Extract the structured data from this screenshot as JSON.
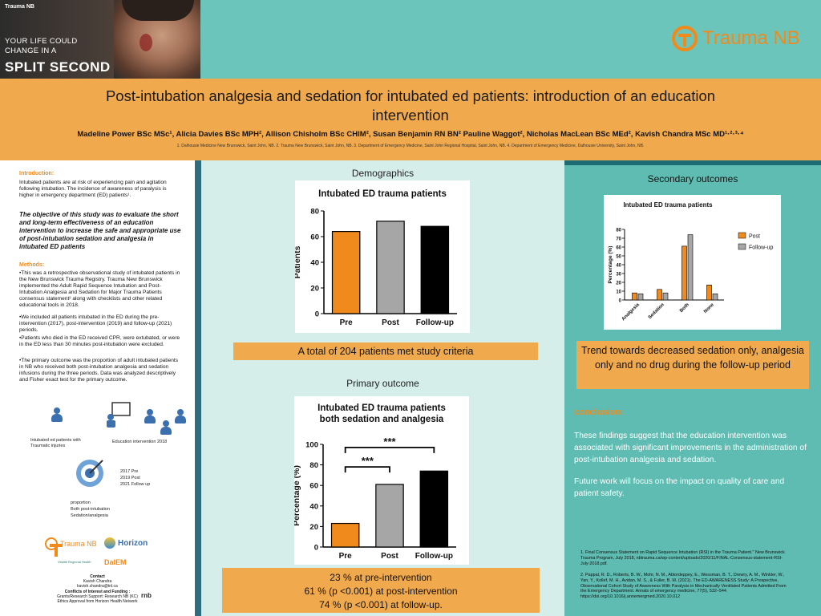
{
  "hero": {
    "brand": "Trauma NB",
    "tagline1": "YOUR LIFE COULD",
    "tagline2": "CHANGE IN A",
    "tagline3": "SPLIT SECOND"
  },
  "logo_main": "Trauma NB",
  "title": "Post-intubation analgesia and sedation for intubated ed patients: introduction of an education intervention",
  "authors": "Madeline Power BSc MSc¹, Alicia Davies BSc MPH², Allison Chisholm BSc CHIM², Susan Benjamin RN BN² Pauline Waggot², Nicholas MacLean BSc MEd², Kavish Chandra MSc MD¹·²·³·⁴",
  "affiliations": "1. Dalhousie Medicine New Brunswick, Saint John, NB. 2. Trauma New Brunswick, Saint John, NB. 3. Department of Emergency Medicine, Saint John Regional Hospital, Saint John, NB. 4. Department of Emergency Medicine, Dalhousie University, Saint John, NB.",
  "left": {
    "intro_head": "Introduction:",
    "intro_text": "Intubated patients are at risk of experiencing pain and agitation following intubation. The incidence of awareness of paralysis is higher in emergency department (ED) patients¹.",
    "objective": "The objective of this study was to evaluate the short and long-term effectiveness of an education intervention to increase the safe and appropriate use of post-intubation sedation and analgesia in intubated ED patients",
    "methods_head": "Methods:",
    "m1": "•This was a retrospective observational study of intubated patients in the New Brunswick Trauma Registry. Trauma New Brunswick implemented the Adult Rapid Sequence Intubation and Post-Intubation Analgesia and Sedation for Major Trauma Patients consensus statement² along with checklists and other related educational tools in 2018.",
    "m2": "•We included all patients intubated in the ED during the pre-intervention (2017), post-intervention (2019) and follow-up (2021) periods.",
    "m3": "•Patients who died in the ED received CPR, were extubated, or were in the ED less than 30 minutes post-intubation were excluded.",
    "m4": "•The primary outcome was the proportion of adult intubated patients in NB who received both post-intubation analgesia and sedation infusions during the three periods. Data was analyzed descriptively and Fisher exact test for the primary outcome.",
    "icon1_label": "Intubated ed patients with Traumatic injuries",
    "icon2_label": "Education intervention 2018",
    "years1": "2017 Pre",
    "years2": "2019 Post",
    "years3": "2021 Follow up",
    "prop1": "proportion",
    "prop2": "Both post-intubation",
    "prop3": "Sedation/analgesia",
    "logo_trauma": "Trauma NB",
    "logo_horizon": "Horizon",
    "logo_vitalite": "Vitalité Regional Health",
    "logo_dalem": "DalEM",
    "contact_head": "Contact",
    "contact_name": "Kavish Chandra",
    "contact_email": "kavish.chandra@tnl.ca",
    "coi_head": "Conflicts of Interest and Funding :",
    "coi1": "Grants/Research Support: Research NB (KC)",
    "coi2": "Ethics Approval from Horizon Health Network",
    "logo_rnb": "rnb"
  },
  "demographics": {
    "section_title": "Demographics",
    "summary": "A total of 204 patients met study criteria"
  },
  "primary": {
    "section_title": "Primary outcome",
    "summary1": "23 % at pre-intervention",
    "summary2": "61 % (p <0.001) at post-intervention",
    "summary3": "74 % (p <0.001) at follow-up."
  },
  "secondary": {
    "section_title": "Secondary outcomes",
    "summary": "Trend towards decreased sedation only, analgesia only and no drug during the follow-up period"
  },
  "conclusion": {
    "head": "conclusion:",
    "p1": "These findings suggest that the education intervention was associated with significant improvements in the administration of post-intubation analgesia and sedation.",
    "p2": "Future work will focus on the impact on quality of care and patient safety."
  },
  "references": {
    "r1": "1. Final Consensus Statement on Rapid Sequence Intubation (RSI) in the Trauma Patient.\" New Brunswick Trauma Program, July 2018, nbtrauma.ca/wp-content/uploads/2020/11/FINAL-Consensus-statement-RSI-July-2018.pdf.",
    "r2": "2. Pappal, R. D., Roberts, B. W., Mohr, N. M., Ablordeppey, E., Wessman, B. T., Drewry, A. M., Winkler, W., Yan, Y., Kollef, M. H., Avidan, M. S., & Fuller, B. M. (2021). The ED-AWARENESS Study: A Prospective, Observational Cohort Study of Awareness With Paralysis in Mechanically Ventilated Patients Admitted From the Emergency Department. Annals of emergency medicine, 77(5), 532–544. https://doi.org/10.1016/j.annemergmed.2020.10.012"
  },
  "colors": {
    "orange": "#f08a1c",
    "gray": "#a6a6a6",
    "black": "#000000",
    "band": "#f1a94e",
    "teal": "#6cc5bb"
  },
  "chart_data": [
    {
      "type": "bar",
      "title": "Intubated ED trauma patients",
      "ylabel": "Patients",
      "xlabel": "",
      "categories": [
        "Pre",
        "Post",
        "Follow-up"
      ],
      "values": [
        64,
        72,
        68
      ],
      "colors": [
        "#f08a1c",
        "#a6a6a6",
        "#000000"
      ],
      "ylim": [
        0,
        80
      ],
      "yticks": [
        0,
        20,
        40,
        60,
        80
      ]
    },
    {
      "type": "bar",
      "title": "Intubated ED trauma patients both sedation and analgesia",
      "title_line1": "Intubated ED trauma patients",
      "title_line2": "both sedation and analgesia",
      "ylabel": "Percentage (%)",
      "xlabel": "",
      "categories": [
        "Pre",
        "Post",
        "Follow-up"
      ],
      "values": [
        23,
        61,
        74
      ],
      "colors": [
        "#f08a1c",
        "#a6a6a6",
        "#000000"
      ],
      "ylim": [
        0,
        100
      ],
      "yticks": [
        0,
        20,
        40,
        60,
        80,
        100
      ],
      "annotations": [
        "***",
        "***"
      ]
    },
    {
      "type": "bar",
      "title": "Intubated ED trauma patients",
      "ylabel": "Percentage (%)",
      "xlabel": "",
      "categories": [
        "Analgesia",
        "Sedation",
        "Both",
        "None"
      ],
      "series": [
        {
          "name": "Post",
          "values": [
            8,
            12,
            61,
            17
          ],
          "color": "#f08a1c"
        },
        {
          "name": "Follow-up",
          "values": [
            7,
            8,
            74,
            7
          ],
          "color": "#a6a6a6"
        }
      ],
      "ylim": [
        0,
        80
      ],
      "yticks": [
        0,
        10,
        20,
        30,
        40,
        50,
        60,
        70,
        80
      ],
      "legend": "right"
    }
  ]
}
